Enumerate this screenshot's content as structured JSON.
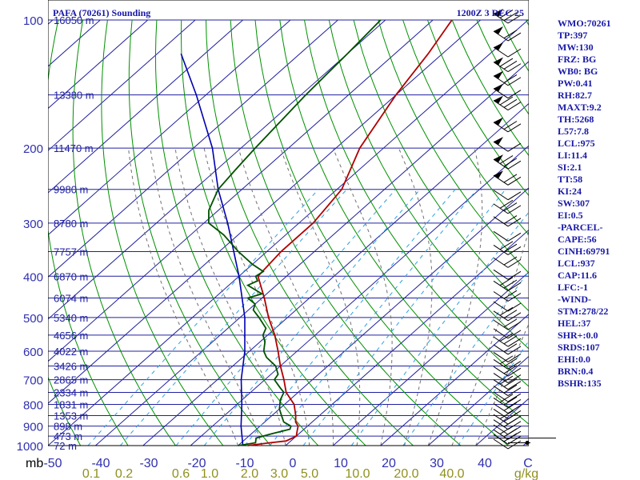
{
  "header": {
    "title": "PAFA (70261) Sounding",
    "time": "1200Z  3 DEC 25"
  },
  "colors": {
    "background": "#ffffff",
    "isobar": "#2020a0",
    "isotherm": "#2020a0",
    "dry_adiabat": "#009000",
    "moist_adiabat": "#707070",
    "mixing_ratio": "#30a0e0",
    "temperature": "#b00000",
    "dewpoint": "#005000",
    "wetbulb": "#0000b0",
    "axis_label": "#3030b0",
    "height_label": "#2020a0",
    "index_text": "#1818a8",
    "mixing_label": "#909020",
    "wind_barb": "#000000"
  },
  "chart_data": {
    "type": "line",
    "pressure_labels": [
      "100",
      "200",
      "300",
      "400",
      "500",
      "600",
      "700",
      "800",
      "900",
      "1000"
    ],
    "height_labels": [
      {
        "p": 100,
        "text": "16050 m"
      },
      {
        "p": 150,
        "text": "13380 m"
      },
      {
        "p": 200,
        "text": "11470 m"
      },
      {
        "p": 250,
        "text": "9980 m"
      },
      {
        "p": 300,
        "text": "8780 m"
      },
      {
        "p": 350,
        "text": "7757 m"
      },
      {
        "p": 400,
        "text": "6870 m"
      },
      {
        "p": 450,
        "text": "6074 m"
      },
      {
        "p": 500,
        "text": "5340 m"
      },
      {
        "p": 550,
        "text": "4656 m"
      },
      {
        "p": 600,
        "text": "4022 m"
      },
      {
        "p": 650,
        "text": "3426 m"
      },
      {
        "p": 700,
        "text": "2865 m"
      },
      {
        "p": 750,
        "text": "2334 m"
      },
      {
        "p": 800,
        "text": "1831 m"
      },
      {
        "p": 850,
        "text": "1353 m"
      },
      {
        "p": 900,
        "text": "898 m"
      },
      {
        "p": 950,
        "text": "473 m"
      },
      {
        "p": 1000,
        "text": "72 m"
      }
    ],
    "x_unit_label": "mb",
    "x_tick_labels": [
      "-50",
      "-40",
      "-30",
      "-20",
      "-10",
      "0",
      "10",
      "20",
      "30",
      "40",
      "C"
    ],
    "mixing_ratio_labels": [
      "0.1",
      "0.2",
      "0.6",
      "1.0",
      "2.0",
      "3.0",
      "5.0",
      "10.0",
      "20.0",
      "40.0",
      "g/kg"
    ],
    "temperature_profile": [
      {
        "p": 1000,
        "t": -8
      },
      {
        "p": 985,
        "t": -4
      },
      {
        "p": 975,
        "t": -1
      },
      {
        "p": 950,
        "t": 0
      },
      {
        "p": 925,
        "t": -1
      },
      {
        "p": 900,
        "t": -2
      },
      {
        "p": 880,
        "t": -3.5
      },
      {
        "p": 850,
        "t": -5
      },
      {
        "p": 800,
        "t": -8
      },
      {
        "p": 750,
        "t": -12.5
      },
      {
        "p": 700,
        "t": -16
      },
      {
        "p": 650,
        "t": -20
      },
      {
        "p": 600,
        "t": -24
      },
      {
        "p": 550,
        "t": -28.5
      },
      {
        "p": 500,
        "t": -34
      },
      {
        "p": 450,
        "t": -39.5
      },
      {
        "p": 400,
        "t": -46
      },
      {
        "p": 350,
        "t": -47
      },
      {
        "p": 300,
        "t": -47
      },
      {
        "p": 250,
        "t": -49
      },
      {
        "p": 200,
        "t": -55
      },
      {
        "p": 150,
        "t": -60
      },
      {
        "p": 120,
        "t": -63
      },
      {
        "p": 100,
        "t": -66
      }
    ],
    "dewpoint_profile": [
      {
        "p": 1000,
        "td": -10
      },
      {
        "p": 985,
        "td": -7
      },
      {
        "p": 960,
        "td": -8
      },
      {
        "p": 940,
        "td": -6
      },
      {
        "p": 915,
        "td": -3
      },
      {
        "p": 900,
        "td": -3.5
      },
      {
        "p": 880,
        "td": -6
      },
      {
        "p": 850,
        "td": -8
      },
      {
        "p": 820,
        "td": -10
      },
      {
        "p": 800,
        "td": -11
      },
      {
        "p": 780,
        "td": -12
      },
      {
        "p": 750,
        "td": -13
      },
      {
        "p": 730,
        "td": -15
      },
      {
        "p": 700,
        "td": -18
      },
      {
        "p": 680,
        "td": -18.5
      },
      {
        "p": 650,
        "td": -21
      },
      {
        "p": 620,
        "td": -25
      },
      {
        "p": 600,
        "td": -27
      },
      {
        "p": 570,
        "td": -29
      },
      {
        "p": 550,
        "td": -31
      },
      {
        "p": 530,
        "td": -32
      },
      {
        "p": 500,
        "td": -36
      },
      {
        "p": 480,
        "td": -39
      },
      {
        "p": 465,
        "td": -40
      },
      {
        "p": 450,
        "td": -43
      },
      {
        "p": 440,
        "td": -41
      },
      {
        "p": 420,
        "td": -46
      },
      {
        "p": 410,
        "td": -45
      },
      {
        "p": 400,
        "td": -46.5
      },
      {
        "p": 390,
        "td": -46
      },
      {
        "p": 375,
        "td": -50
      },
      {
        "p": 350,
        "td": -56
      },
      {
        "p": 320,
        "td": -63
      },
      {
        "p": 300,
        "td": -69
      },
      {
        "p": 280,
        "td": -72
      },
      {
        "p": 250,
        "td": -75
      },
      {
        "p": 225,
        "td": -76
      },
      {
        "p": 200,
        "td": -77
      },
      {
        "p": 150,
        "td": -79
      },
      {
        "p": 120,
        "td": -80
      },
      {
        "p": 100,
        "td": -81
      }
    ],
    "wetbulb_profile": [
      {
        "p": 1000,
        "tw": -9
      },
      {
        "p": 900,
        "tw": -14
      },
      {
        "p": 800,
        "tw": -19
      },
      {
        "p": 700,
        "tw": -25
      },
      {
        "p": 600,
        "tw": -31
      },
      {
        "p": 500,
        "tw": -39
      },
      {
        "p": 400,
        "tw": -50
      },
      {
        "p": 300,
        "tw": -65
      },
      {
        "p": 250,
        "tw": -75
      },
      {
        "p": 200,
        "tw": -86
      },
      {
        "p": 150,
        "tw": -102
      },
      {
        "p": 120,
        "tw": -115
      }
    ],
    "wind_barb_levels": [
      1000,
      975,
      950,
      925,
      900,
      875,
      850,
      825,
      800,
      775,
      750,
      725,
      700,
      675,
      650,
      625,
      600,
      575,
      550,
      525,
      500,
      475,
      450,
      425,
      400,
      375,
      350,
      325,
      300,
      280,
      260,
      240,
      220,
      200,
      180,
      160,
      150,
      140,
      130,
      120,
      110,
      100
    ]
  },
  "indices": [
    "WMO:70261",
    "TP:397",
    "MW:130",
    "FRZ: BG",
    "WB0: BG",
    "PW:0.41",
    "RH:82.7",
    "MAXT:9.2",
    "TH:5268",
    "L57:7.8",
    "LCL:975",
    "LI:11.4",
    "SI:2.1",
    "TT:58",
    "KI:24",
    "SW:307",
    "EI:0.5",
    "-PARCEL-",
    "CAPE:56",
    "CINH:69791",
    "LCL:937",
    "CAP:11.6",
    "LFC:-1",
    "-WIND-",
    "STM:278/22",
    "HEL:37",
    "SHR+:0.0",
    "SRDS:107",
    "EHI:0.0",
    "BRN:0.4",
    "BSHR:135"
  ]
}
